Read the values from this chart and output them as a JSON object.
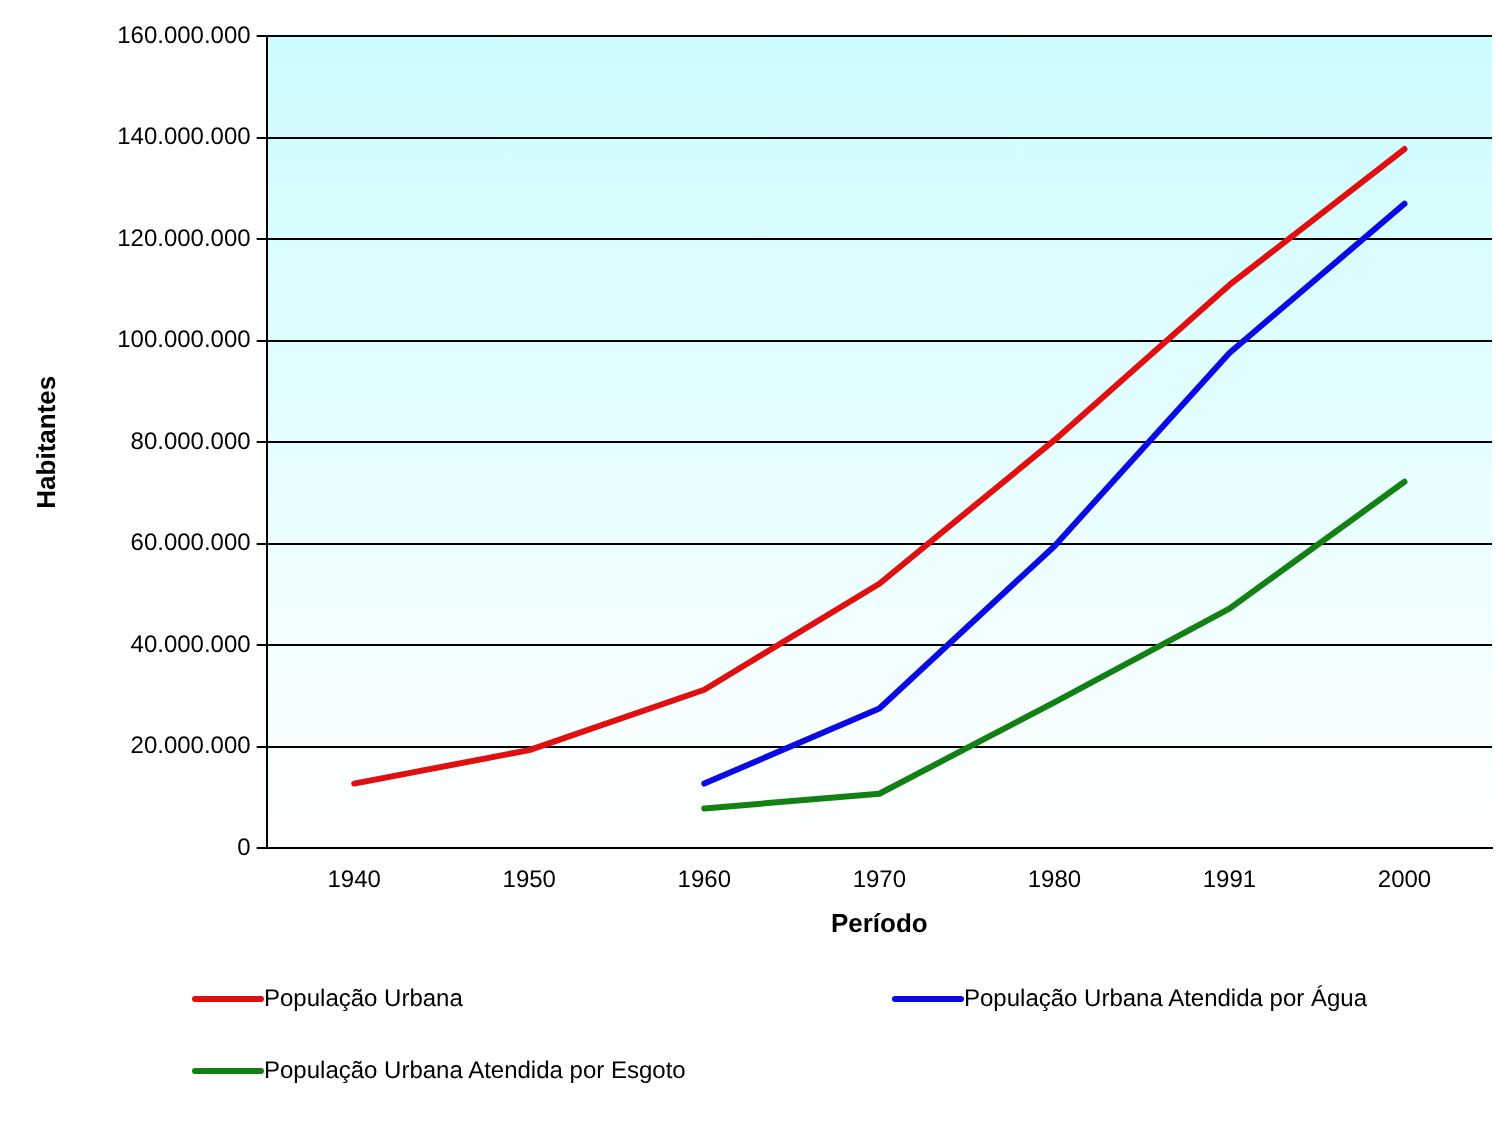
{
  "chart_data": {
    "type": "line",
    "xlabel": "Período",
    "ylabel": "Habitantes",
    "categories": [
      "1940",
      "1950",
      "1960",
      "1970",
      "1980",
      "1991",
      "2000"
    ],
    "series": [
      {
        "name": "População Urbana",
        "color": "#e01010",
        "values": [
          12700000,
          19300000,
          31200000,
          52100000,
          80400000,
          111000000,
          137800000
        ]
      },
      {
        "name": "População Urbana Atendida por Água",
        "color": "#0a0ae6",
        "values": [
          null,
          null,
          12700000,
          27500000,
          59500000,
          97600000,
          127000000
        ]
      },
      {
        "name": "População Urbana Atendida por Esgoto",
        "color": "#128012",
        "values": [
          null,
          null,
          7800000,
          10700000,
          28700000,
          47200000,
          72200000
        ]
      }
    ],
    "ylim": [
      0,
      160000000
    ],
    "yticks": [
      {
        "value": 0,
        "label": "0"
      },
      {
        "value": 20000000,
        "label": "20.000.000"
      },
      {
        "value": 40000000,
        "label": "40.000.000"
      },
      {
        "value": 60000000,
        "label": "60.000.000"
      },
      {
        "value": 80000000,
        "label": "80.000.000"
      },
      {
        "value": 100000000,
        "label": "100.000.000"
      },
      {
        "value": 120000000,
        "label": "120.000.000"
      },
      {
        "value": 140000000,
        "label": "140.000.000"
      },
      {
        "value": 160000000,
        "label": "160.000.000"
      }
    ],
    "grid": "y",
    "legend": "bottom",
    "marker": "none",
    "line_style": "solid"
  }
}
